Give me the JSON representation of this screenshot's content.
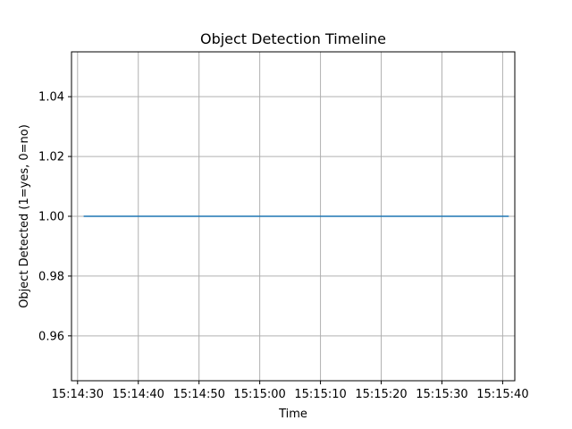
{
  "chart_data": {
    "type": "line",
    "title": "Object Detection Timeline",
    "xlabel": "Time",
    "ylabel": "Object Detected (1=yes, 0=no)",
    "x_tick_labels": [
      "15:14:30",
      "15:14:40",
      "15:14:50",
      "15:15:00",
      "15:15:10",
      "15:15:20",
      "15:15:30",
      "15:15:40"
    ],
    "y_tick_labels": [
      "0.96",
      "0.98",
      "1.00",
      "1.02",
      "1.04"
    ],
    "xlim": [
      "15:14:29",
      "15:15:42"
    ],
    "ylim": [
      0.945,
      1.055
    ],
    "grid": true,
    "series": [
      {
        "x": [
          "15:14:31",
          "15:15:41"
        ],
        "values": [
          1.0,
          1.0
        ],
        "color": "#1f77b4"
      }
    ]
  }
}
